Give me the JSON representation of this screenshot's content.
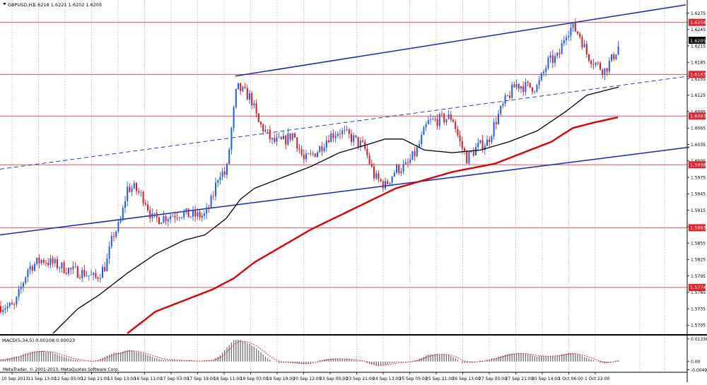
{
  "header": {
    "symbol_title": "GBPUSD,H1",
    "ohlc": "1.6218 1.6221 1.6202 1.6205"
  },
  "footer": {
    "copyright": "MetaTrader, © 2001-2013, MetaQuotes Software Corp."
  },
  "colors": {
    "background": "#ffffff",
    "grid": "#9aa0a8",
    "candle_up": "#1c5cff",
    "candle_down": "#e0191e",
    "sma_fast": "#000000",
    "sma_slow": "#e00000",
    "channel": "#1526c8",
    "hline": "#e8505a",
    "macd_hist": "#6e6e6e",
    "macd_signal": "#e0191e"
  },
  "chart_data": [
    {
      "type": "candlestick",
      "series_title": "GBPUSD,H1",
      "ylim": [
        1.569,
        1.6295
      ],
      "y_ticks": [
        "1.6275",
        "1.6245",
        "1.6215",
        "1.6185",
        "1.6155",
        "1.6125",
        "1.6095",
        "1.6065",
        "1.6035",
        "1.6005",
        "1.5975",
        "1.5945",
        "1.5915",
        "1.5885",
        "1.5855",
        "1.5825",
        "1.5795",
        "1.5765",
        "1.5735",
        "1.5705"
      ],
      "current_price": "1.6205",
      "x_tick_labels": [
        "10 Sep 2013",
        "11 Sep 13:00",
        "12 Sep 05:00",
        "12 Sep 21:00",
        "13 Sep 13:00",
        "16 Sep 11:00",
        "17 Sep 03:00",
        "17 Sep 19:00",
        "18 Sep 11:00",
        "19 Sep 03:00",
        "19 Sep 19:00",
        "20 Sep 12:00",
        "23 Sep 05:00",
        "23 Sep 21:00",
        "24 Sep 13:00",
        "25 Sep 05:00",
        "25 Sep 21:00",
        "26 Sep 13:00",
        "27 Sep 05:00",
        "27 Sep 21:00",
        "30 Sep 14:00",
        "1 Oct 06:00",
        "1 Oct 22:00"
      ],
      "horizontal_levels": [
        {
          "value": 1.6258,
          "label": "1.6258"
        },
        {
          "value": 1.6163,
          "label": "1.6163"
        },
        {
          "value": 1.6087,
          "label": "1.6087"
        },
        {
          "value": 1.5998,
          "label": "1.5998"
        },
        {
          "value": 1.5883,
          "label": "1.5883"
        },
        {
          "value": 1.5774,
          "label": "1.5774"
        }
      ],
      "price_anchors": [
        [
          0,
          1.574
        ],
        [
          20,
          1.5738
        ],
        [
          40,
          1.581
        ],
        [
          60,
          1.5825
        ],
        [
          80,
          1.5815
        ],
        [
          100,
          1.5805
        ],
        [
          120,
          1.58
        ],
        [
          135,
          1.579
        ],
        [
          150,
          1.5815
        ],
        [
          160,
          1.587
        ],
        [
          170,
          1.589
        ],
        [
          180,
          1.5955
        ],
        [
          190,
          1.5955
        ],
        [
          205,
          1.5935
        ],
        [
          215,
          1.59
        ],
        [
          225,
          1.59
        ],
        [
          240,
          1.5905
        ],
        [
          255,
          1.591
        ],
        [
          270,
          1.5905
        ],
        [
          290,
          1.5905
        ],
        [
          300,
          1.5935
        ],
        [
          310,
          1.5985
        ],
        [
          320,
          1.598
        ],
        [
          328,
          1.607
        ],
        [
          335,
          1.614
        ],
        [
          345,
          1.613
        ],
        [
          355,
          1.612
        ],
        [
          365,
          1.6075
        ],
        [
          375,
          1.606
        ],
        [
          385,
          1.604
        ],
        [
          400,
          1.604
        ],
        [
          415,
          1.6055
        ],
        [
          430,
          1.6005
        ],
        [
          450,
          1.6025
        ],
        [
          465,
          1.605
        ],
        [
          480,
          1.606
        ],
        [
          500,
          1.6045
        ],
        [
          515,
          1.603
        ],
        [
          530,
          1.5975
        ],
        [
          545,
          1.596
        ],
        [
          560,
          1.599
        ],
        [
          575,
          1.5995
        ],
        [
          590,
          1.6025
        ],
        [
          605,
          1.6075
        ],
        [
          620,
          1.608
        ],
        [
          640,
          1.6085
        ],
        [
          650,
          1.604
        ],
        [
          660,
          1.601
        ],
        [
          675,
          1.603
        ],
        [
          690,
          1.604
        ],
        [
          700,
          1.6075
        ],
        [
          715,
          1.6115
        ],
        [
          730,
          1.6145
        ],
        [
          745,
          1.614
        ],
        [
          760,
          1.614
        ],
        [
          775,
          1.6185
        ],
        [
          790,
          1.6195
        ],
        [
          800,
          1.624
        ],
        [
          810,
          1.625
        ],
        [
          820,
          1.6235
        ],
        [
          830,
          1.62
        ],
        [
          845,
          1.618
        ],
        [
          855,
          1.617
        ],
        [
          865,
          1.619
        ],
        [
          875,
          1.6215
        ]
      ],
      "sma_fast_anchors": [
        [
          75,
          1.569
        ],
        [
          110,
          1.5735
        ],
        [
          140,
          1.576
        ],
        [
          180,
          1.58
        ],
        [
          220,
          1.5835
        ],
        [
          260,
          1.586
        ],
        [
          290,
          1.587
        ],
        [
          320,
          1.59
        ],
        [
          340,
          1.5935
        ],
        [
          360,
          1.5955
        ],
        [
          400,
          1.5975
        ],
        [
          440,
          1.5995
        ],
        [
          480,
          1.602
        ],
        [
          520,
          1.6035
        ],
        [
          545,
          1.6045
        ],
        [
          570,
          1.6045
        ],
        [
          600,
          1.6025
        ],
        [
          640,
          1.602
        ],
        [
          680,
          1.6025
        ],
        [
          720,
          1.604
        ],
        [
          760,
          1.606
        ],
        [
          800,
          1.6095
        ],
        [
          830,
          1.6125
        ],
        [
          860,
          1.6135
        ],
        [
          875,
          1.614
        ]
      ],
      "sma_slow_anchors": [
        [
          180,
          1.569
        ],
        [
          220,
          1.573
        ],
        [
          260,
          1.575
        ],
        [
          300,
          1.577
        ],
        [
          330,
          1.579
        ],
        [
          360,
          1.582
        ],
        [
          400,
          1.585
        ],
        [
          440,
          1.588
        ],
        [
          480,
          1.5905
        ],
        [
          520,
          1.593
        ],
        [
          560,
          1.5955
        ],
        [
          600,
          1.597
        ],
        [
          640,
          1.5985
        ],
        [
          660,
          1.599
        ],
        [
          700,
          1.6
        ],
        [
          740,
          1.602
        ],
        [
          780,
          1.604
        ],
        [
          810,
          1.6065
        ],
        [
          840,
          1.6075
        ],
        [
          875,
          1.6085
        ]
      ],
      "channel_lines": [
        {
          "name": "upper",
          "from": [
            333,
            1.616
          ],
          "to": [
            970,
            1.629
          ]
        },
        {
          "name": "lower",
          "from": [
            0,
            1.587
          ],
          "to": [
            975,
            1.603
          ]
        },
        {
          "name": "mid",
          "from": [
            0,
            1.599
          ],
          "to": [
            975,
            1.616
          ],
          "dashed": true
        }
      ]
    },
    {
      "type": "bar",
      "series_title": "MACD(5,34,5) 0.00108 0.00023",
      "ylim": [
        -0.006,
        0.015
      ],
      "y_ticks": [
        "0.01336",
        "0.00",
        "-0.00499"
      ],
      "macd_anchors": [
        [
          0,
          0.0008
        ],
        [
          15,
          0.002
        ],
        [
          25,
          0.003
        ],
        [
          40,
          0.0055
        ],
        [
          55,
          0.0062
        ],
        [
          70,
          0.0057
        ],
        [
          85,
          0.0035
        ],
        [
          100,
          0.0015
        ],
        [
          115,
          0.0005
        ],
        [
          130,
          0.0
        ],
        [
          140,
          0.001
        ],
        [
          150,
          0.003
        ],
        [
          160,
          0.005
        ],
        [
          170,
          0.0055
        ],
        [
          180,
          0.007
        ],
        [
          190,
          0.0062
        ],
        [
          200,
          0.005
        ],
        [
          210,
          0.0035
        ],
        [
          220,
          0.002
        ],
        [
          230,
          0.001
        ],
        [
          240,
          0.0008
        ],
        [
          260,
          0.0005
        ],
        [
          280,
          0.0003
        ],
        [
          300,
          0.0008
        ],
        [
          310,
          0.003
        ],
        [
          320,
          0.008
        ],
        [
          330,
          0.0125
        ],
        [
          335,
          0.0132
        ],
        [
          345,
          0.012
        ],
        [
          355,
          0.01
        ],
        [
          365,
          0.007
        ],
        [
          375,
          0.003
        ],
        [
          385,
          0.0
        ],
        [
          395,
          -0.0008
        ],
        [
          410,
          -0.0005
        ],
        [
          425,
          -0.0015
        ],
        [
          440,
          -0.001
        ],
        [
          455,
          0.001
        ],
        [
          470,
          0.0018
        ],
        [
          485,
          0.0015
        ],
        [
          500,
          0.0008
        ],
        [
          515,
          0.0
        ],
        [
          525,
          -0.0018
        ],
        [
          535,
          -0.003
        ],
        [
          545,
          -0.002
        ],
        [
          560,
          -0.0005
        ],
        [
          575,
          -0.0004
        ],
        [
          590,
          0.001
        ],
        [
          605,
          0.004
        ],
        [
          620,
          0.0045
        ],
        [
          635,
          0.004
        ],
        [
          645,
          0.0015
        ],
        [
          655,
          -0.001
        ],
        [
          665,
          -0.0005
        ],
        [
          675,
          0.0
        ],
        [
          690,
          0.001
        ],
        [
          705,
          0.0028
        ],
        [
          720,
          0.0045
        ],
        [
          735,
          0.005
        ],
        [
          745,
          0.0045
        ],
        [
          760,
          0.003
        ],
        [
          775,
          0.003
        ],
        [
          790,
          0.0035
        ],
        [
          805,
          0.005
        ],
        [
          815,
          0.0045
        ],
        [
          825,
          0.003
        ],
        [
          835,
          0.0015
        ],
        [
          845,
          -0.0003
        ],
        [
          855,
          -0.001
        ],
        [
          865,
          -0.0002
        ],
        [
          875,
          0.0008
        ]
      ]
    }
  ]
}
